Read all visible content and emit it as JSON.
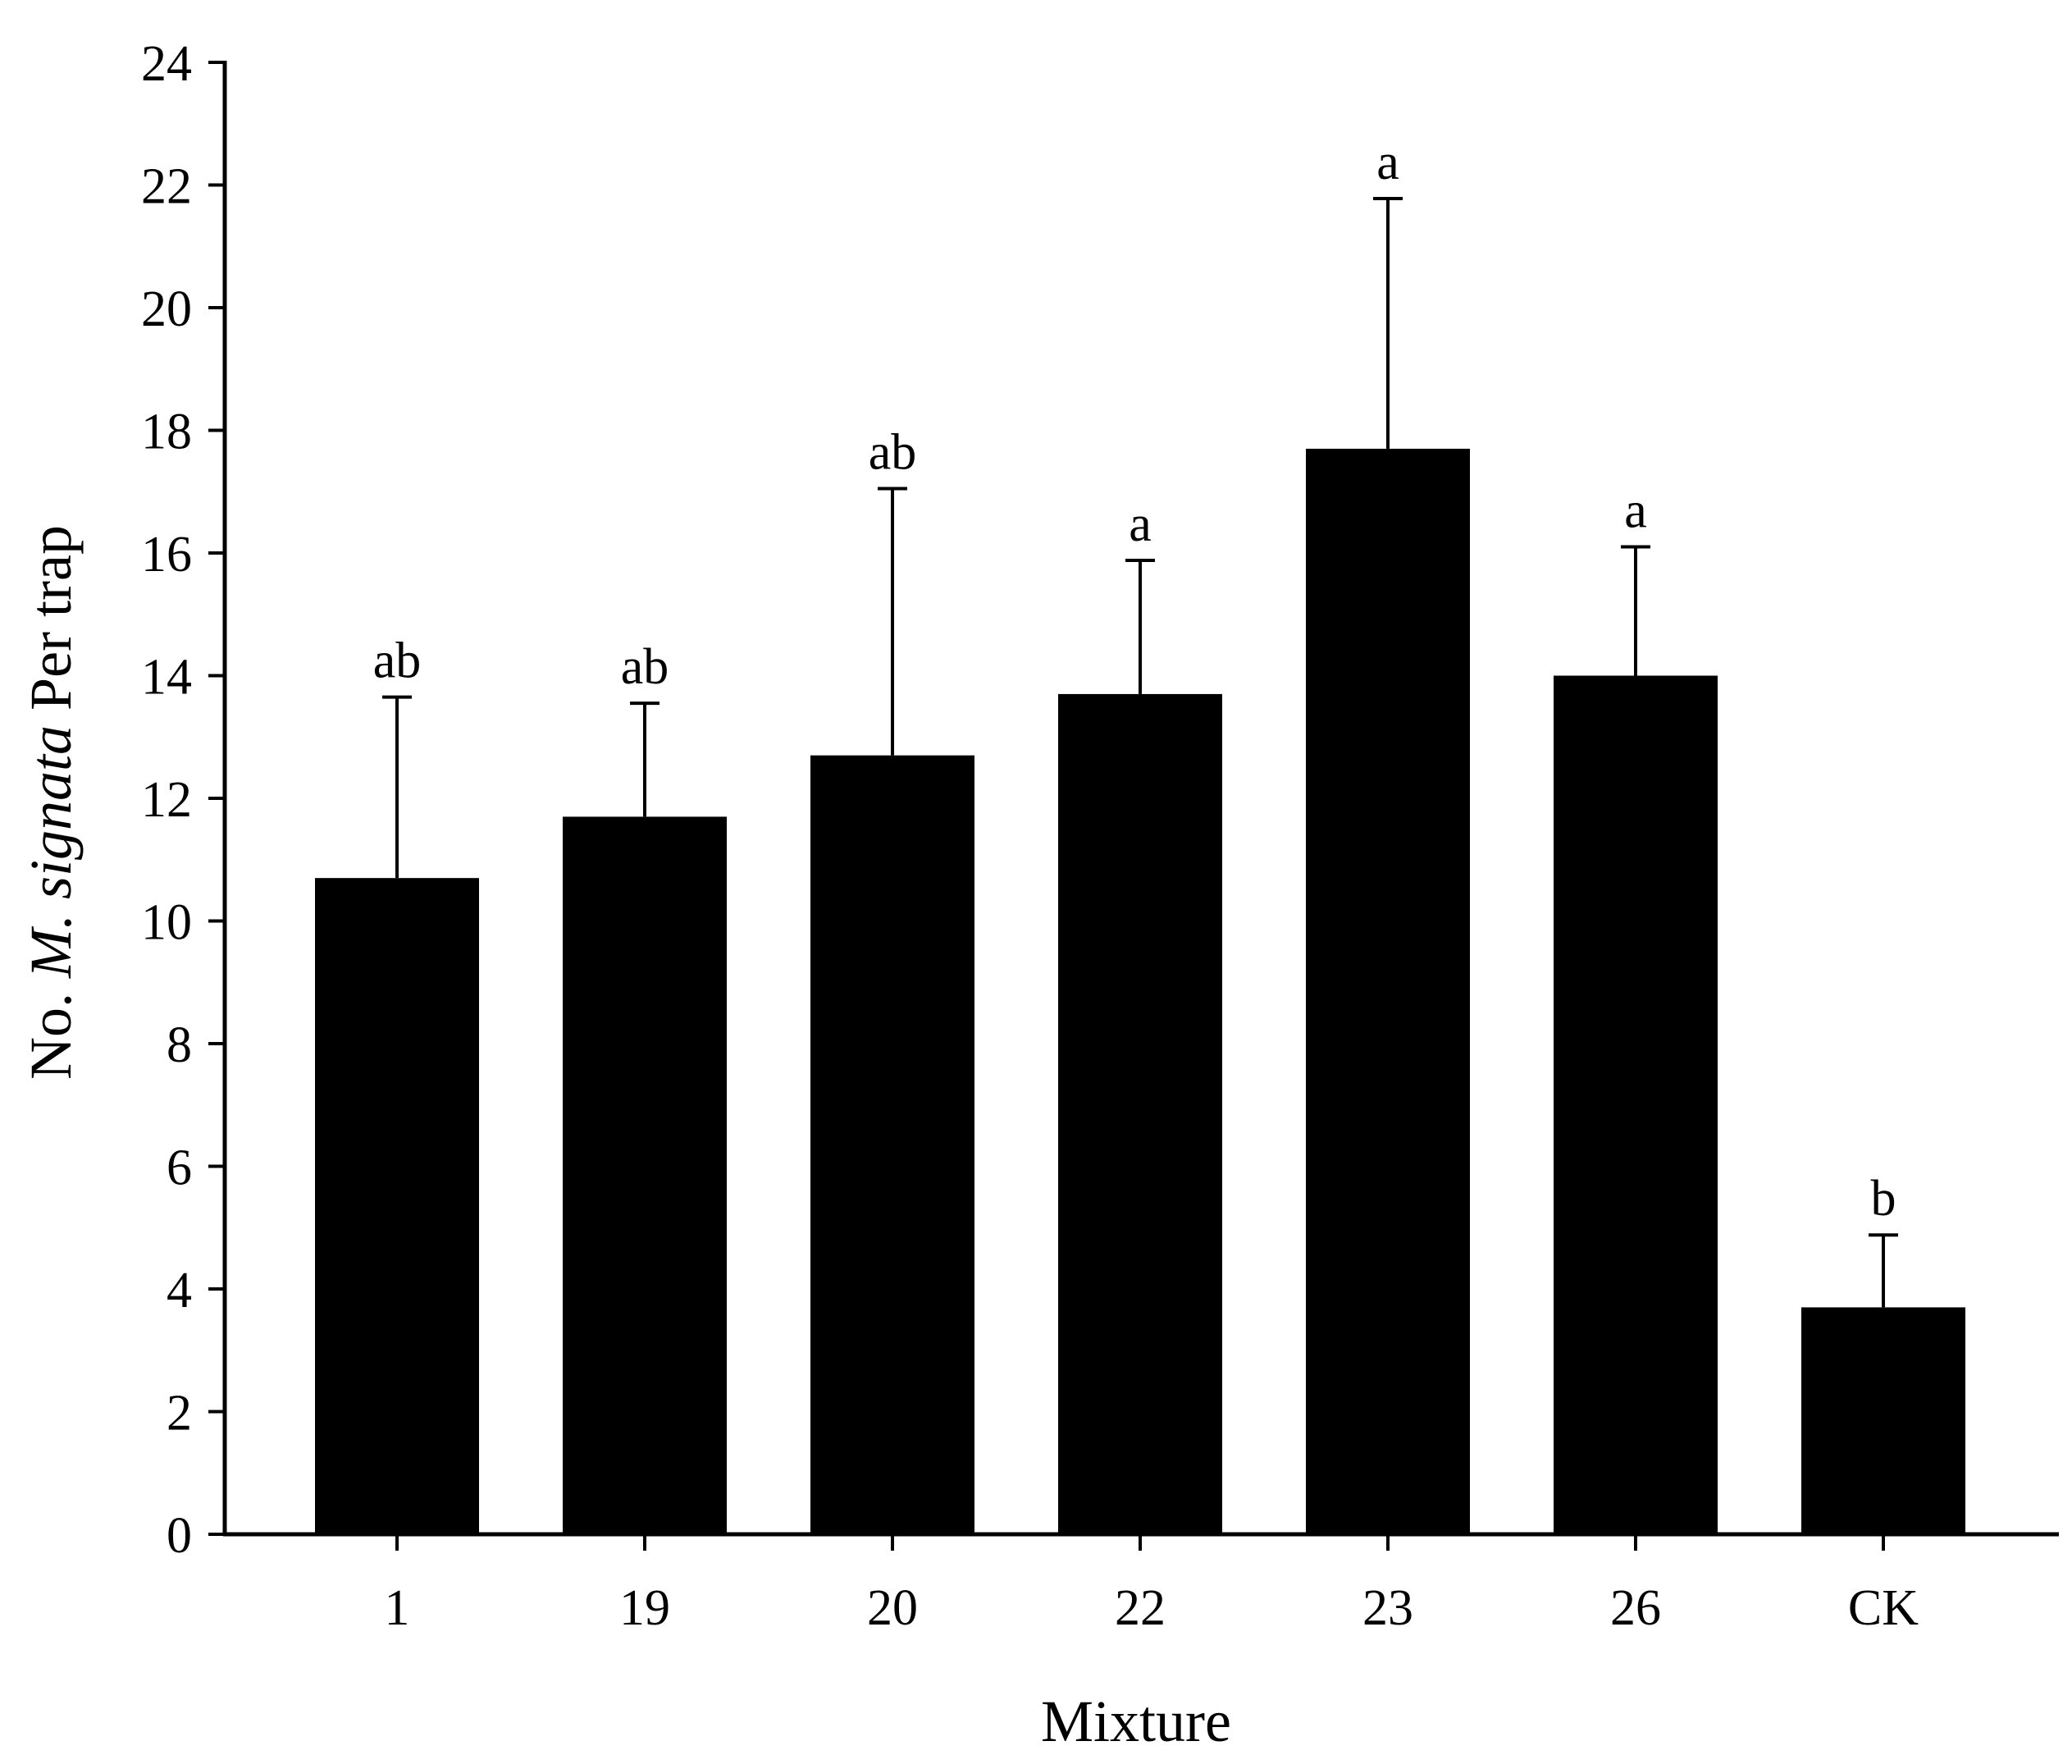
{
  "chart_data": {
    "type": "bar",
    "title": "",
    "xlabel": "Mixture",
    "ylabel": {
      "prefix": "No. ",
      "species": "M. signata",
      "suffix": " Per trap"
    },
    "categories": [
      "1",
      "19",
      "20",
      "22",
      "23",
      "26",
      "CK"
    ],
    "values": [
      10.7,
      11.7,
      12.7,
      13.7,
      17.7,
      14.0,
      3.7
    ],
    "error_upper": [
      13.65,
      13.55,
      17.05,
      15.88,
      21.78,
      16.1,
      4.88
    ],
    "significance_letters": [
      "ab",
      "ab",
      "ab",
      "a",
      "a",
      "a",
      "b"
    ],
    "ylim": [
      0,
      24
    ],
    "y_ticks": [
      "0",
      "2",
      "4",
      "6",
      "8",
      "10",
      "12",
      "14",
      "16",
      "18",
      "20",
      "22",
      "24"
    ],
    "grid": false,
    "legend": "none",
    "colors": {
      "bar": "#000000",
      "axis": "#000000",
      "background": "#ffffff"
    }
  }
}
